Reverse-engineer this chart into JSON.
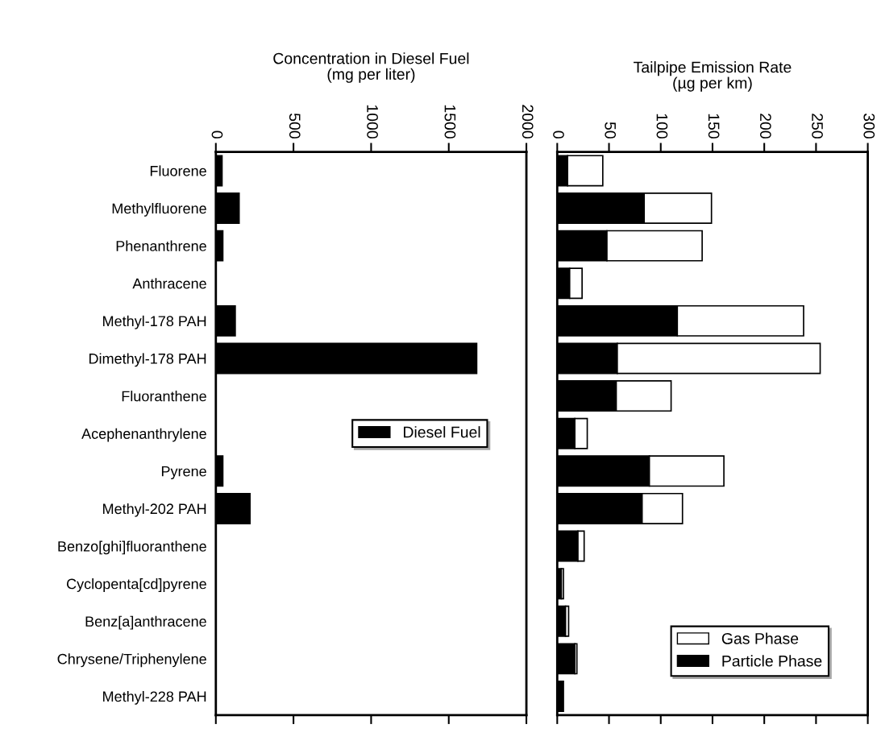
{
  "chart_data": [
    {
      "type": "bar",
      "orientation": "horizontal",
      "xlabel": "Concentration in Diesel Fuel\n(mg per liter)",
      "categories": [
        "Fluorene",
        "Methylfluorene",
        "Phenanthrene",
        "Anthracene",
        "Methyl-178 PAH",
        "Dimethyl-178 PAH",
        "Fluoranthene",
        "Acephenanthrylene",
        "Pyrene",
        "Methyl-202 PAH",
        "Benzo[ghi]fluoranthene",
        "Cyclopenta[cd]pyrene",
        "Benz[a]anthracene",
        "Chrysene/Triphenylene",
        "Methyl-228 PAH"
      ],
      "series": [
        {
          "name": "Diesel Fuel",
          "color": "#000000",
          "values": [
            40,
            150,
            45,
            0,
            125,
            1680,
            0,
            0,
            45,
            220,
            0,
            0,
            0,
            0,
            0
          ]
        }
      ],
      "xlim": [
        0,
        2000
      ],
      "xticks": [
        0,
        500,
        1000,
        1500,
        2000
      ],
      "grid": false,
      "legend": "center right"
    },
    {
      "type": "bar",
      "orientation": "horizontal",
      "stacked": true,
      "xlabel": "Tailpipe Emission Rate\n(µg per km)",
      "categories": [
        null,
        null,
        null,
        null,
        null,
        null,
        null,
        null,
        null,
        null,
        null,
        null,
        null,
        null,
        null
      ],
      "series": [
        {
          "name": "Particle Phase",
          "color": "#000000",
          "values": [
            10,
            84,
            48,
            12,
            116,
            58,
            57,
            17,
            89,
            82,
            20,
            4,
            8,
            17,
            6
          ]
        },
        {
          "name": "Gas Phase",
          "color": "#ffffff",
          "values": [
            34,
            65,
            92,
            12,
            122,
            196,
            53,
            12,
            72,
            39,
            6,
            2,
            3,
            2,
            null
          ]
        }
      ],
      "xlim": [
        0,
        300
      ],
      "xticks": [
        0,
        50,
        100,
        150,
        200,
        250,
        300
      ],
      "grid": false,
      "legend": "lower right",
      "tick_labels": "x"
    }
  ]
}
